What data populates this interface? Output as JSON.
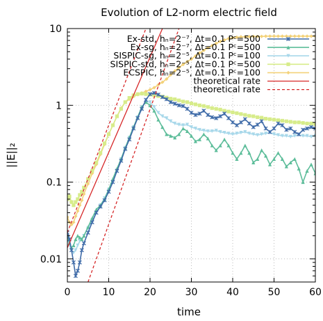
{
  "chart_data": {
    "type": "line",
    "title": "Evolution of L2-norm electric field",
    "xlabel": "time",
    "ylabel": "||E||₂",
    "xlim": [
      0,
      60
    ],
    "ylim": [
      0.005,
      10
    ],
    "y_scale": "log",
    "x_ticks": [
      0,
      10,
      20,
      30,
      40,
      50,
      60
    ],
    "x_tick_labels": [
      "0",
      "10",
      "20",
      "30",
      "40",
      "50",
      "60"
    ],
    "y_ticks": [
      0.01,
      0.1,
      1,
      10
    ],
    "y_tick_labels": [
      "0.01",
      "0.1",
      "1",
      "10"
    ],
    "grid": true,
    "legend_position": "top-right",
    "series": [
      {
        "name": "Ex-std, hₙ=2⁻⁷, Δt=0.1 Pᶜ=500",
        "color": "#3f6ba8",
        "marker": "x",
        "x": [
          0,
          0.5,
          1,
          1.5,
          2,
          2.5,
          3,
          3.5,
          4,
          5,
          6,
          7,
          8,
          9,
          10,
          11,
          12,
          13,
          14,
          15,
          16,
          17,
          18,
          19,
          20,
          21,
          22,
          23,
          24,
          25,
          26,
          27,
          28,
          29,
          30,
          31,
          32,
          33,
          34,
          35,
          36,
          37,
          38,
          39,
          40,
          41,
          42,
          43,
          44,
          45,
          46,
          47,
          48,
          49,
          50,
          51,
          52,
          53,
          54,
          55,
          56,
          57,
          58,
          59,
          60
        ],
        "y": [
          0.022,
          0.018,
          0.013,
          0.009,
          0.006,
          0.007,
          0.009,
          0.013,
          0.016,
          0.022,
          0.03,
          0.04,
          0.048,
          0.058,
          0.075,
          0.1,
          0.14,
          0.19,
          0.27,
          0.36,
          0.5,
          0.68,
          0.9,
          1.18,
          1.4,
          1.45,
          1.38,
          1.28,
          1.2,
          1.1,
          1.05,
          1.0,
          0.98,
          0.9,
          0.8,
          0.75,
          0.78,
          0.85,
          0.75,
          0.7,
          0.68,
          0.72,
          0.78,
          0.68,
          0.6,
          0.55,
          0.6,
          0.66,
          0.58,
          0.52,
          0.56,
          0.62,
          0.5,
          0.45,
          0.5,
          0.58,
          0.55,
          0.48,
          0.5,
          0.45,
          0.42,
          0.48,
          0.5,
          0.52,
          0.5
        ]
      },
      {
        "name": "Ex-sg, hₙ=2⁻⁷, Δt=0.1 Pᶜ=500",
        "color": "#5dbd9a",
        "marker": "triangle",
        "x": [
          0,
          0.5,
          1,
          1.5,
          2,
          2.5,
          3,
          3.5,
          4,
          5,
          6,
          7,
          8,
          9,
          10,
          11,
          12,
          13,
          14,
          15,
          16,
          17,
          18,
          19,
          20,
          21,
          22,
          23,
          24,
          25,
          26,
          27,
          28,
          29,
          30,
          31,
          32,
          33,
          34,
          35,
          36,
          37,
          38,
          39,
          40,
          41,
          42,
          43,
          44,
          45,
          46,
          47,
          48,
          49,
          50,
          51,
          52,
          53,
          54,
          55,
          56,
          57,
          58,
          59,
          60
        ],
        "y": [
          0.02,
          0.016,
          0.014,
          0.015,
          0.018,
          0.02,
          0.019,
          0.018,
          0.02,
          0.026,
          0.034,
          0.044,
          0.05,
          0.06,
          0.08,
          0.11,
          0.15,
          0.2,
          0.28,
          0.38,
          0.52,
          0.7,
          0.95,
          1.1,
          1.0,
          0.85,
          0.65,
          0.52,
          0.42,
          0.4,
          0.38,
          0.42,
          0.5,
          0.46,
          0.4,
          0.34,
          0.36,
          0.42,
          0.37,
          0.3,
          0.26,
          0.3,
          0.36,
          0.3,
          0.24,
          0.2,
          0.24,
          0.3,
          0.24,
          0.18,
          0.2,
          0.26,
          0.22,
          0.17,
          0.2,
          0.24,
          0.2,
          0.16,
          0.18,
          0.2,
          0.15,
          0.1,
          0.14,
          0.17,
          0.13
        ]
      },
      {
        "name": "SISPIC-sg, hₙ=2⁻⁵, Δt=0.1 Pᶜ=100",
        "color": "#a8d8ea",
        "marker": "triangle-down",
        "x": [
          0,
          0.5,
          1,
          1.5,
          2,
          2.5,
          3,
          3.5,
          4,
          5,
          6,
          7,
          8,
          9,
          10,
          11,
          12,
          13,
          14,
          15,
          16,
          17,
          18,
          19,
          20,
          21,
          22,
          23,
          24,
          25,
          26,
          27,
          28,
          29,
          30,
          31,
          32,
          33,
          34,
          35,
          36,
          37,
          38,
          39,
          40,
          41,
          42,
          43,
          44,
          45,
          46,
          47,
          48,
          49,
          50,
          51,
          52,
          53,
          54,
          55,
          56,
          57,
          58,
          59,
          60
        ],
        "y": [
          0.018,
          0.015,
          0.013,
          0.012,
          0.013,
          0.015,
          0.017,
          0.018,
          0.02,
          0.025,
          0.032,
          0.04,
          0.05,
          0.062,
          0.08,
          0.1,
          0.14,
          0.2,
          0.28,
          0.38,
          0.52,
          0.7,
          0.95,
          1.12,
          1.1,
          0.95,
          0.8,
          0.72,
          0.68,
          0.62,
          0.58,
          0.56,
          0.55,
          0.56,
          0.52,
          0.5,
          0.48,
          0.47,
          0.46,
          0.46,
          0.47,
          0.45,
          0.44,
          0.43,
          0.42,
          0.43,
          0.44,
          0.45,
          0.43,
          0.42,
          0.41,
          0.42,
          0.43,
          0.44,
          0.42,
          0.41,
          0.4,
          0.4,
          0.39,
          0.4,
          0.41,
          0.4,
          0.4,
          0.39,
          0.4
        ]
      },
      {
        "name": "SISPIC-std, hₙ=2⁻⁵, Δt=0.1 Pᶜ=500",
        "color": "#d7ec8a",
        "marker": "square",
        "x": [
          0,
          0.5,
          1,
          1.5,
          2,
          2.5,
          3,
          3.5,
          4,
          5,
          6,
          7,
          8,
          9,
          10,
          11,
          12,
          13,
          14,
          15,
          16,
          17,
          18,
          19,
          20,
          21,
          22,
          23,
          24,
          25,
          26,
          27,
          28,
          29,
          30,
          31,
          32,
          33,
          34,
          35,
          36,
          37,
          38,
          39,
          40,
          41,
          42,
          43,
          44,
          45,
          46,
          47,
          48,
          49,
          50,
          51,
          52,
          53,
          54,
          55,
          56,
          57,
          58,
          59,
          60
        ],
        "y": [
          0.06,
          0.065,
          0.055,
          0.05,
          0.055,
          0.06,
          0.068,
          0.075,
          0.085,
          0.11,
          0.14,
          0.18,
          0.24,
          0.32,
          0.42,
          0.55,
          0.72,
          0.9,
          1.1,
          1.25,
          1.35,
          1.4,
          1.42,
          1.4,
          1.38,
          1.35,
          1.32,
          1.3,
          1.26,
          1.22,
          1.2,
          1.16,
          1.12,
          1.1,
          1.06,
          1.03,
          1.0,
          0.98,
          0.95,
          0.92,
          0.9,
          0.88,
          0.85,
          0.83,
          0.81,
          0.79,
          0.77,
          0.75,
          0.73,
          0.72,
          0.7,
          0.69,
          0.67,
          0.66,
          0.65,
          0.64,
          0.63,
          0.62,
          0.61,
          0.6,
          0.6,
          0.59,
          0.58,
          0.58,
          0.57
        ]
      },
      {
        "name": "ECSPIC, hₙ=2⁻⁵, Δt=0.1 Pᶜ=100",
        "color": "#f3d27a",
        "marker": "diamond",
        "x": [
          0,
          0.5,
          1,
          1.5,
          2,
          2.5,
          3,
          3.5,
          4,
          5,
          6,
          7,
          8,
          9,
          10,
          11,
          12,
          13,
          14,
          15,
          16,
          17,
          18,
          19,
          20,
          21,
          22,
          23,
          24,
          25,
          26,
          27,
          28,
          29,
          30,
          31,
          32,
          33,
          34,
          35,
          36,
          37,
          38,
          39,
          40,
          41,
          42,
          43,
          44,
          45,
          46,
          47,
          48,
          49,
          50,
          51,
          52,
          53,
          54,
          55,
          56,
          57,
          58,
          59,
          60
        ],
        "y": [
          0.035,
          0.03,
          0.028,
          0.03,
          0.036,
          0.042,
          0.05,
          0.058,
          0.07,
          0.095,
          0.13,
          0.17,
          0.23,
          0.31,
          0.42,
          0.55,
          0.72,
          0.92,
          1.1,
          1.2,
          1.3,
          1.38,
          1.45,
          1.52,
          1.6,
          1.7,
          1.85,
          2.0,
          2.2,
          2.5,
          2.8,
          3.1,
          3.4,
          3.7,
          4.0,
          4.4,
          4.8,
          5.2,
          5.6,
          6.0,
          6.4,
          6.8,
          7.1,
          7.4,
          7.6,
          7.7,
          7.8,
          7.8,
          7.85,
          7.9,
          7.9,
          7.9,
          7.95,
          7.95,
          7.95,
          7.95,
          7.95,
          7.95,
          7.95,
          7.95,
          7.95,
          7.95,
          7.95,
          7.95,
          7.95
        ]
      },
      {
        "name": "theoretical rate",
        "color": "#d62728",
        "dash": "solid",
        "x": [
          0,
          23
        ],
        "y": [
          0.014,
          10
        ]
      },
      {
        "name": "theoretical rate",
        "color": "#d62728",
        "dash": "dashed",
        "extra_lines": [
          {
            "x": [
              0,
              19
            ],
            "y": [
              0.022,
              10
            ]
          },
          {
            "x": [
              5,
              27
            ],
            "y": [
              0.005,
              10
            ]
          }
        ]
      }
    ]
  }
}
